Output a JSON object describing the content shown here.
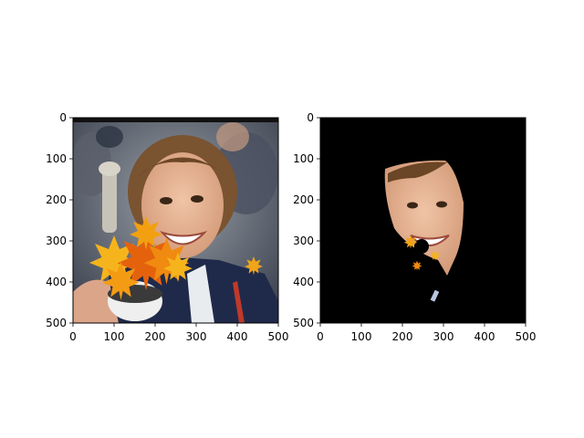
{
  "chart_data": [
    {
      "type": "image",
      "title": "",
      "xlabel": "",
      "ylabel": "",
      "xlim": [
        0,
        500
      ],
      "ylim": [
        500,
        0
      ],
      "xticks": [
        0,
        100,
        200,
        300,
        400,
        500
      ],
      "yticks": [
        0,
        100,
        200,
        300,
        400,
        500
      ],
      "content": "photo of a smiling woman holding a trophy, overlaid with orange autumn leaves"
    },
    {
      "type": "image",
      "title": "",
      "xlabel": "",
      "ylabel": "",
      "xlim": [
        0,
        500
      ],
      "ylim": [
        500,
        0
      ],
      "xticks": [
        0,
        100,
        200,
        300,
        400,
        500
      ],
      "yticks": [
        0,
        100,
        200,
        300,
        400,
        500
      ],
      "content": "segmentation mask result: only the face region visible on black background with a few leaf fragments"
    }
  ],
  "colors": {
    "background": "#ffffff",
    "mask": "#000000",
    "leaf_orange": "#f08a10",
    "leaf_yellow": "#f6b41c",
    "jacket": "#1f2a4a",
    "skin": "#e7b394",
    "hair": "#7a5331"
  }
}
